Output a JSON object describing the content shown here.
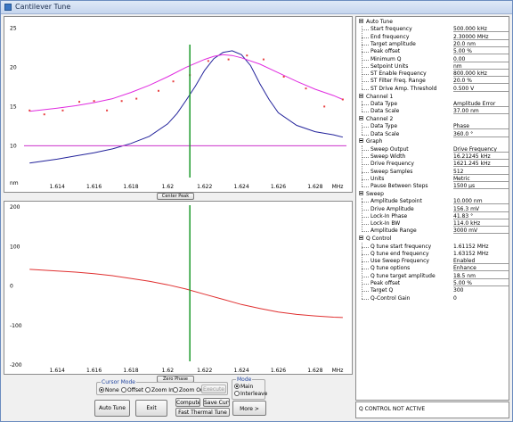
{
  "window": {
    "title": "Cantilever Tune"
  },
  "colors": {
    "amplitude": "#23239b",
    "fit": "#e02ce0",
    "points": "#e84040",
    "cursor": "#1c9a2c",
    "phase": "#e03030",
    "setpoint": "#cc33cc"
  },
  "top_plot": {
    "yticks": [
      "25",
      "20",
      "15",
      "10",
      "nm"
    ],
    "xticks": [
      "1.614",
      "1.616",
      "1.618",
      "1.62",
      "1.622",
      "1.624",
      "1.626",
      "1.628",
      "MHz"
    ],
    "button": "Center Peak"
  },
  "bottom_plot": {
    "yticks": [
      "200",
      "100",
      "0",
      "-100",
      "-200"
    ],
    "xticks": [
      "1.614",
      "1.616",
      "1.618",
      "1.62",
      "1.622",
      "1.624",
      "1.626",
      "1.628",
      "MHz"
    ],
    "button": "Zero Phase"
  },
  "chart_data": [
    {
      "type": "line",
      "title": "",
      "xlabel": "MHz",
      "ylabel": "nm",
      "xlim": [
        1.6122,
        1.6297
      ],
      "ylim": [
        5.5,
        25.5
      ],
      "cursor_x": 1.6212,
      "series": [
        {
          "name": "",
          "kind": "line",
          "color": "#23239b",
          "x": [
            1.6125,
            1.614,
            1.615,
            1.616,
            1.617,
            1.618,
            1.619,
            1.62,
            1.6205,
            1.621,
            1.6215,
            1.622,
            1.6225,
            1.623,
            1.6235,
            1.624,
            1.6245,
            1.625,
            1.6255,
            1.626,
            1.627,
            1.628,
            1.629,
            1.6295
          ],
          "y": [
            7.8,
            8.3,
            8.7,
            9.1,
            9.6,
            10.3,
            11.2,
            12.8,
            14.1,
            15.8,
            17.6,
            19.6,
            21.1,
            21.9,
            22.1,
            21.6,
            20.2,
            17.9,
            15.9,
            14.2,
            12.6,
            11.8,
            11.4,
            11.1
          ]
        },
        {
          "name": "",
          "kind": "line",
          "color": "#e02ce0",
          "x": [
            1.6125,
            1.614,
            1.615,
            1.616,
            1.617,
            1.618,
            1.619,
            1.62,
            1.621,
            1.622,
            1.6225,
            1.623,
            1.6235,
            1.624,
            1.625,
            1.626,
            1.627,
            1.628,
            1.629,
            1.6295
          ],
          "y": [
            14.4,
            14.8,
            15.1,
            15.5,
            16.0,
            16.8,
            17.7,
            18.8,
            20.0,
            21.0,
            21.4,
            21.6,
            21.5,
            21.2,
            20.4,
            19.3,
            18.2,
            17.2,
            16.4,
            15.9
          ]
        },
        {
          "name": "",
          "kind": "points",
          "color": "#e84040",
          "x": [
            1.6125,
            1.6133,
            1.6143,
            1.6152,
            1.616,
            1.6167,
            1.6175,
            1.6183,
            1.6195,
            1.6203,
            1.6212,
            1.6222,
            1.6233,
            1.6243,
            1.6252,
            1.6263,
            1.6275,
            1.6285,
            1.6295
          ],
          "y": [
            14.5,
            14.0,
            14.5,
            15.6,
            15.7,
            14.5,
            15.7,
            16.0,
            17.0,
            18.2,
            19.0,
            20.8,
            21.0,
            21.5,
            21.0,
            18.8,
            17.3,
            15.0,
            15.9
          ]
        },
        {
          "name": "",
          "kind": "hline",
          "color": "#cc33cc",
          "y": 10.0
        }
      ]
    },
    {
      "type": "line",
      "title": "",
      "xlabel": "MHz",
      "ylabel": "",
      "xlim": [
        1.6122,
        1.6297
      ],
      "ylim": [
        -200,
        200
      ],
      "cursor_x": 1.6212,
      "series": [
        {
          "name": "",
          "color": "#e03030",
          "x": [
            1.6125,
            1.614,
            1.615,
            1.616,
            1.617,
            1.618,
            1.619,
            1.62,
            1.621,
            1.622,
            1.623,
            1.624,
            1.625,
            1.626,
            1.627,
            1.628,
            1.629,
            1.6295
          ],
          "y": [
            42,
            38,
            35,
            31,
            26,
            19,
            12,
            3,
            -8,
            -21,
            -34,
            -47,
            -57,
            -66,
            -72,
            -76,
            -79,
            -80
          ]
        }
      ]
    }
  ],
  "controls": {
    "cursor_mode_legend": "Cursor Mode",
    "cursor_modes": [
      "None",
      "Offset",
      "Zoom In",
      "Zoom Out"
    ],
    "cursor_selected": 0,
    "execute": "Execute",
    "mode_legend": "Mode",
    "modes": [
      "Main",
      "Interleave"
    ],
    "mode_selected": 0,
    "auto_tune": "Auto Tune",
    "exit": "Exit",
    "compute_q": "Compute Q",
    "save_curve": "Save Curve",
    "fast_thermal_tune": "Fast Thermal Tune",
    "more": "More >"
  },
  "sections": [
    {
      "title": "Auto Tune",
      "rows": [
        {
          "label": "Start frequency",
          "value": "500.000 kHz",
          "edit": true
        },
        {
          "label": "End frequency",
          "value": "2.30000 MHz",
          "edit": true
        },
        {
          "label": "Target amplitude",
          "value": "20.0 nm",
          "edit": true
        },
        {
          "label": "Peak offset",
          "value": "5.00 %",
          "edit": true
        },
        {
          "label": "Minimum Q",
          "value": "0.00",
          "edit": true
        },
        {
          "label": "Setpoint Units",
          "value": "nm",
          "edit": true
        },
        {
          "label": "ST Enable Frequency",
          "value": "800.000 kHz",
          "edit": true
        },
        {
          "label": "ST Filter Freq. Range",
          "value": "20.0 %",
          "edit": true
        },
        {
          "label": "ST Drive Amp. Threshold",
          "value": "0.500 V",
          "edit": true
        }
      ]
    },
    {
      "title": "Channel 1",
      "rows": [
        {
          "label": "Data Type",
          "value": "Amplitude Error",
          "edit": true
        },
        {
          "label": "Data Scale",
          "value": "37.00 nm",
          "edit": true
        }
      ]
    },
    {
      "title": "Channel 2",
      "rows": [
        {
          "label": "Data Type",
          "value": "Phase",
          "edit": true
        },
        {
          "label": "Data Scale",
          "value": "360.0 °",
          "edit": true
        }
      ]
    },
    {
      "title": "Graph",
      "rows": [
        {
          "label": "Sweep Output",
          "value": "Drive Frequency",
          "edit": true
        },
        {
          "label": "Sweep Width",
          "value": "16.21245 kHz",
          "edit": true
        },
        {
          "label": "Drive Frequency",
          "value": "1621.245 kHz",
          "edit": true
        },
        {
          "label": "Sweep Samples",
          "value": "512",
          "edit": true
        },
        {
          "label": "Units",
          "value": "Metric",
          "edit": true
        },
        {
          "label": "Pause Between Steps",
          "value": "1500 µs",
          "edit": true
        }
      ]
    },
    {
      "title": "Sweep",
      "rows": [
        {
          "label": "Amplitude Setpoint",
          "value": "10.000 nm",
          "edit": true
        },
        {
          "label": "Drive Amplitude",
          "value": "156.3 mV",
          "edit": true
        },
        {
          "label": "Lock-In Phase",
          "value": "41.83 °",
          "edit": true
        },
        {
          "label": "Lock-In BW",
          "value": "114.0 kHz",
          "edit": true
        },
        {
          "label": "Amplitude Range",
          "value": "3000 mV",
          "edit": true
        }
      ]
    },
    {
      "title": "Q Control",
      "rows": [
        {
          "label": "Q tune start frequency",
          "value": "1.61152 MHz",
          "edit": false
        },
        {
          "label": "Q tune end frequency",
          "value": "1.63152 MHz",
          "edit": false
        },
        {
          "label": "Use Sweep Frequency",
          "value": "Enabled",
          "edit": true
        },
        {
          "label": "Q tune options",
          "value": "Enhance",
          "edit": true
        },
        {
          "label": "Q tune target amplitude",
          "value": "18.5 nm",
          "edit": true
        },
        {
          "label": "Peak offset",
          "value": "5.00 %",
          "edit": true
        },
        {
          "label": "Target Q",
          "value": "300",
          "edit": false
        },
        {
          "label": "Q-Control Gain",
          "value": "0",
          "edit": false
        }
      ]
    }
  ],
  "status": "Q CONTROL NOT ACTIVE"
}
